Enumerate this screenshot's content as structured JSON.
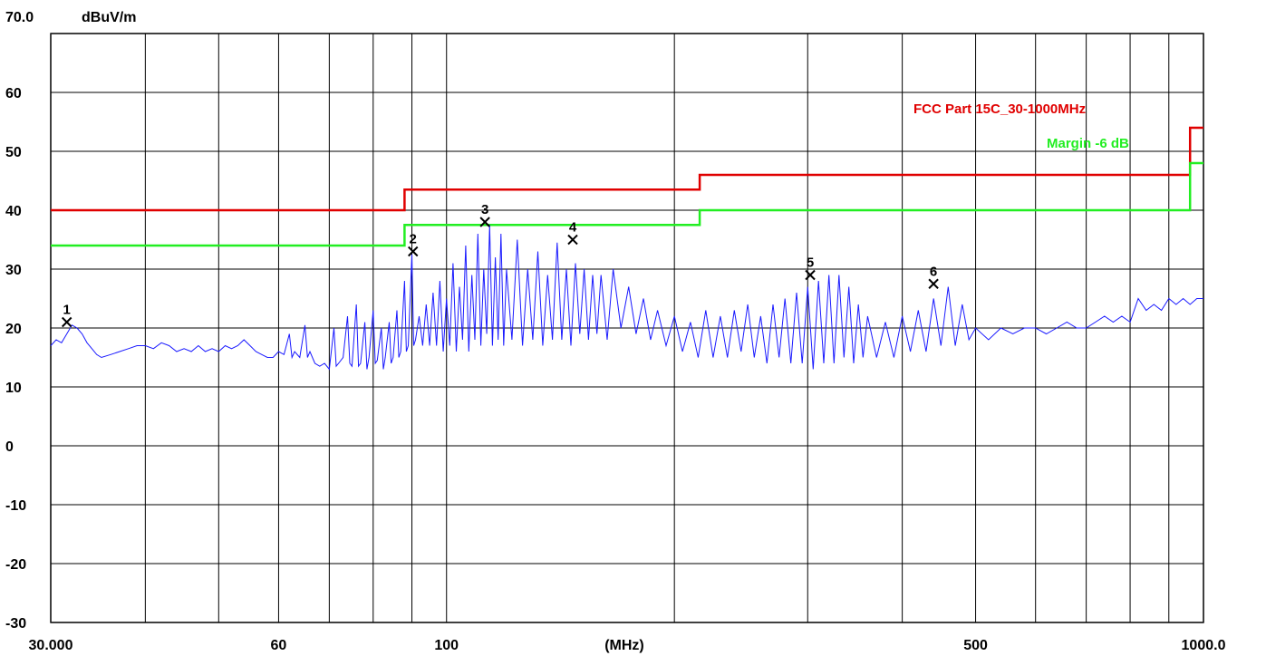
{
  "chart_data": {
    "type": "line",
    "x_scale": "log",
    "xlim": [
      30,
      1000
    ],
    "ylim": [
      -30,
      70
    ],
    "y_unit": "dBuV/m",
    "x_unit": "(MHz)",
    "y_top_label": "70.0",
    "y_ticks": [
      "60",
      "50",
      "40",
      "30",
      "20",
      "10",
      "0",
      "-10",
      "-20",
      "-30"
    ],
    "y_tick_values": [
      60,
      50,
      40,
      30,
      20,
      10,
      0,
      -10,
      -20,
      -30
    ],
    "x_tick_labels": [
      {
        "value": 30,
        "label": "30.000"
      },
      {
        "value": 60,
        "label": "60"
      },
      {
        "value": 100,
        "label": "100"
      },
      {
        "value": 500,
        "label": "500"
      },
      {
        "value": 1000,
        "label": "1000.0"
      }
    ],
    "x_gridlines": [
      30,
      40,
      50,
      60,
      70,
      80,
      90,
      100,
      200,
      300,
      400,
      500,
      600,
      700,
      800,
      900,
      1000
    ],
    "y_gridlines": [
      70,
      60,
      50,
      40,
      30,
      20,
      10,
      0,
      -10,
      -20,
      -30
    ],
    "grid": true,
    "series": [
      {
        "name": "FCC Part 15C_30-1000MHz",
        "color": "#e00000",
        "points": [
          [
            30,
            40
          ],
          [
            88,
            40
          ],
          [
            88,
            43.5
          ],
          [
            216,
            43.5
          ],
          [
            216,
            46
          ],
          [
            960,
            46
          ],
          [
            960,
            54
          ],
          [
            1000,
            54
          ]
        ]
      },
      {
        "name": "Margin -6 dB",
        "color": "#22ee22",
        "points": [
          [
            30,
            34
          ],
          [
            88,
            34
          ],
          [
            88,
            37.5
          ],
          [
            216,
            37.5
          ],
          [
            216,
            40
          ],
          [
            960,
            40
          ],
          [
            960,
            48
          ],
          [
            1000,
            48
          ]
        ]
      },
      {
        "color": "#1a1aff",
        "points": [
          [
            30,
            17
          ],
          [
            30.5,
            18
          ],
          [
            31,
            17.5
          ],
          [
            31.5,
            19
          ],
          [
            32,
            20.5
          ],
          [
            32.5,
            20
          ],
          [
            33,
            19
          ],
          [
            33.5,
            17.5
          ],
          [
            34,
            16.5
          ],
          [
            34.5,
            15.5
          ],
          [
            35,
            15
          ],
          [
            36,
            15.5
          ],
          [
            37,
            16
          ],
          [
            38,
            16.5
          ],
          [
            39,
            17
          ],
          [
            40,
            17
          ],
          [
            41,
            16.5
          ],
          [
            42,
            17.5
          ],
          [
            43,
            17
          ],
          [
            44,
            16
          ],
          [
            45,
            16.5
          ],
          [
            46,
            16
          ],
          [
            47,
            17
          ],
          [
            48,
            16
          ],
          [
            49,
            16.5
          ],
          [
            50,
            16
          ],
          [
            51,
            17
          ],
          [
            52,
            16.5
          ],
          [
            53,
            17
          ],
          [
            54,
            18
          ],
          [
            55,
            17
          ],
          [
            56,
            16
          ],
          [
            57,
            15.5
          ],
          [
            58,
            15
          ],
          [
            59,
            15
          ],
          [
            60,
            16
          ],
          [
            61,
            15.5
          ],
          [
            62,
            19
          ],
          [
            62.5,
            15
          ],
          [
            63,
            16
          ],
          [
            64,
            15
          ],
          [
            65,
            20.5
          ],
          [
            65.5,
            15
          ],
          [
            66,
            16
          ],
          [
            67,
            14
          ],
          [
            68,
            13.5
          ],
          [
            69,
            14
          ],
          [
            70,
            13
          ],
          [
            71,
            20
          ],
          [
            71.5,
            13.5
          ],
          [
            72,
            14
          ],
          [
            73,
            15
          ],
          [
            74,
            22
          ],
          [
            74.5,
            14
          ],
          [
            75,
            13.5
          ],
          [
            76,
            24
          ],
          [
            76.5,
            13.5
          ],
          [
            77,
            14
          ],
          [
            78,
            21
          ],
          [
            78.5,
            13
          ],
          [
            79,
            15
          ],
          [
            80,
            23
          ],
          [
            80.5,
            14
          ],
          [
            81,
            14.5
          ],
          [
            82,
            20
          ],
          [
            82.5,
            13
          ],
          [
            83,
            15
          ],
          [
            84,
            21
          ],
          [
            84.5,
            14
          ],
          [
            85,
            15
          ],
          [
            86,
            23
          ],
          [
            86.5,
            15
          ],
          [
            87,
            16
          ],
          [
            88,
            28
          ],
          [
            88.5,
            16
          ],
          [
            89,
            17
          ],
          [
            90,
            32.5
          ],
          [
            90.5,
            17
          ],
          [
            91,
            18
          ],
          [
            92,
            22
          ],
          [
            93,
            17
          ],
          [
            94,
            24
          ],
          [
            95,
            17
          ],
          [
            96,
            26
          ],
          [
            97,
            17
          ],
          [
            98,
            28
          ],
          [
            99,
            16
          ],
          [
            100,
            25
          ],
          [
            101,
            17
          ],
          [
            102,
            31
          ],
          [
            103,
            16
          ],
          [
            104,
            27
          ],
          [
            105,
            18
          ],
          [
            106,
            34
          ],
          [
            107,
            16
          ],
          [
            108,
            29
          ],
          [
            109,
            18
          ],
          [
            110,
            36
          ],
          [
            111,
            17
          ],
          [
            112,
            30
          ],
          [
            113,
            19
          ],
          [
            114,
            37.5
          ],
          [
            115,
            17
          ],
          [
            116,
            32
          ],
          [
            117,
            18
          ],
          [
            118,
            36
          ],
          [
            119,
            17
          ],
          [
            120,
            30
          ],
          [
            122,
            18
          ],
          [
            124,
            35
          ],
          [
            126,
            17
          ],
          [
            128,
            30
          ],
          [
            130,
            18
          ],
          [
            132,
            33
          ],
          [
            134,
            17
          ],
          [
            136,
            29
          ],
          [
            138,
            18
          ],
          [
            140,
            34.5
          ],
          [
            142,
            18
          ],
          [
            144,
            30
          ],
          [
            146,
            17
          ],
          [
            148,
            31
          ],
          [
            150,
            19
          ],
          [
            152,
            30
          ],
          [
            154,
            18
          ],
          [
            156,
            29
          ],
          [
            158,
            19
          ],
          [
            160,
            29
          ],
          [
            163,
            18
          ],
          [
            166,
            30
          ],
          [
            170,
            20
          ],
          [
            174,
            27
          ],
          [
            178,
            19
          ],
          [
            182,
            25
          ],
          [
            186,
            18
          ],
          [
            190,
            23
          ],
          [
            195,
            17
          ],
          [
            200,
            22
          ],
          [
            205,
            16
          ],
          [
            210,
            21
          ],
          [
            215,
            15
          ],
          [
            220,
            23
          ],
          [
            225,
            15
          ],
          [
            230,
            22
          ],
          [
            235,
            15
          ],
          [
            240,
            23
          ],
          [
            245,
            16
          ],
          [
            250,
            24
          ],
          [
            255,
            15
          ],
          [
            260,
            22
          ],
          [
            265,
            14
          ],
          [
            270,
            24
          ],
          [
            275,
            15
          ],
          [
            280,
            25
          ],
          [
            285,
            14
          ],
          [
            290,
            26
          ],
          [
            295,
            14
          ],
          [
            300,
            27
          ],
          [
            305,
            13
          ],
          [
            310,
            28
          ],
          [
            315,
            14
          ],
          [
            320,
            29
          ],
          [
            325,
            14
          ],
          [
            330,
            29
          ],
          [
            335,
            15
          ],
          [
            340,
            27
          ],
          [
            345,
            14
          ],
          [
            350,
            24
          ],
          [
            355,
            15
          ],
          [
            360,
            22
          ],
          [
            370,
            15
          ],
          [
            380,
            21
          ],
          [
            390,
            15
          ],
          [
            400,
            22
          ],
          [
            410,
            16
          ],
          [
            420,
            23
          ],
          [
            430,
            16
          ],
          [
            440,
            25
          ],
          [
            450,
            17
          ],
          [
            460,
            27
          ],
          [
            470,
            17
          ],
          [
            480,
            24
          ],
          [
            490,
            18
          ],
          [
            500,
            20
          ],
          [
            520,
            18
          ],
          [
            540,
            20
          ],
          [
            560,
            19
          ],
          [
            580,
            20
          ],
          [
            600,
            20
          ],
          [
            620,
            19
          ],
          [
            640,
            20
          ],
          [
            660,
            21
          ],
          [
            680,
            20
          ],
          [
            700,
            20
          ],
          [
            720,
            21
          ],
          [
            740,
            22
          ],
          [
            760,
            21
          ],
          [
            780,
            22
          ],
          [
            800,
            21
          ],
          [
            820,
            25
          ],
          [
            840,
            23
          ],
          [
            860,
            24
          ],
          [
            880,
            23
          ],
          [
            900,
            25
          ],
          [
            920,
            24
          ],
          [
            940,
            25
          ],
          [
            960,
            24
          ],
          [
            980,
            25
          ],
          [
            1000,
            25
          ]
        ]
      }
    ],
    "markers": [
      {
        "label": "1",
        "x": 31.5,
        "y": 21
      },
      {
        "label": "2",
        "x": 90.3,
        "y": 33
      },
      {
        "label": "3",
        "x": 112.4,
        "y": 38
      },
      {
        "label": "4",
        "x": 146.8,
        "y": 35
      },
      {
        "label": "5",
        "x": 302.3,
        "y": 29
      },
      {
        "label": "6",
        "x": 439.9,
        "y": 27.5
      }
    ],
    "legend": {
      "red_label": "FCC Part 15C_30-1000MHz",
      "green_label": "Margin -6 dB",
      "placement": "top-right"
    }
  }
}
